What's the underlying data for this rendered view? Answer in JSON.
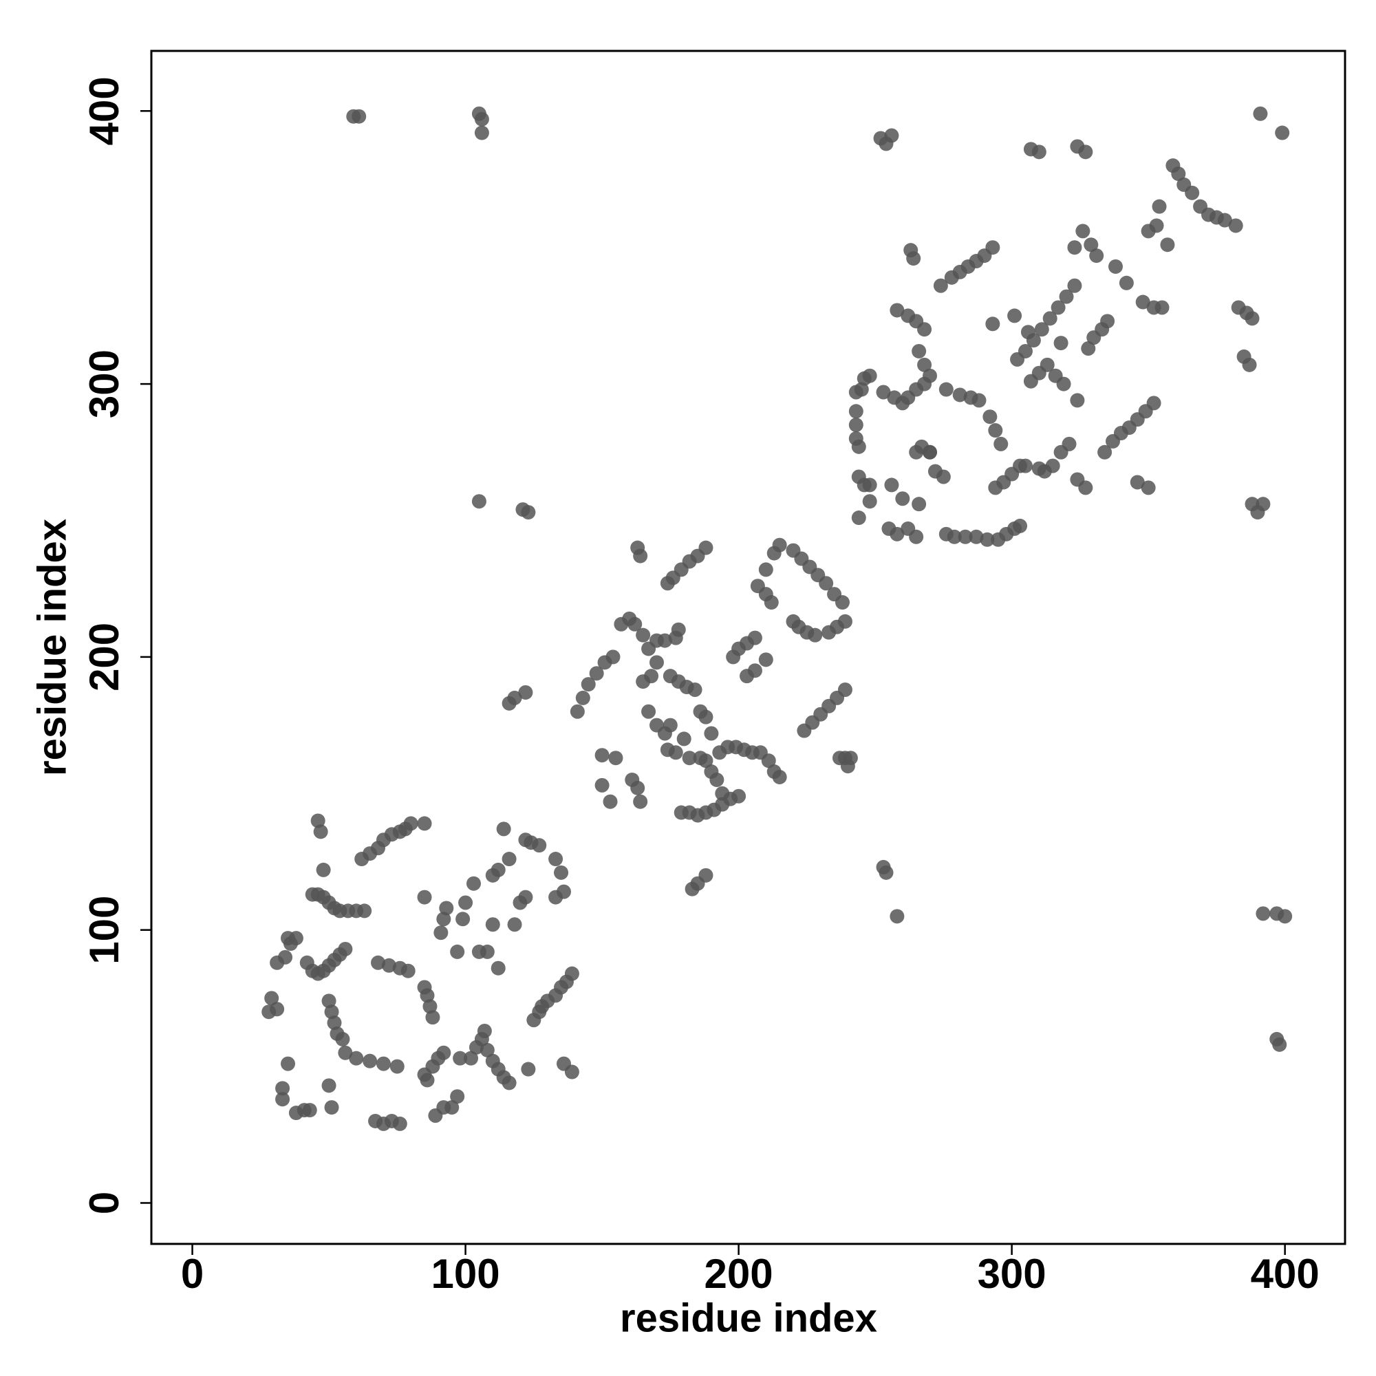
{
  "chart_data": {
    "type": "scatter",
    "xlabel": "residue index",
    "ylabel": "residue index",
    "xlim": [
      -15,
      422
    ],
    "ylim": [
      -15,
      422
    ],
    "xticks": [
      0,
      100,
      200,
      300,
      400
    ],
    "yticks": [
      0,
      100,
      200,
      300,
      400
    ],
    "color": "#555555",
    "x": [
      59,
      61,
      105,
      106,
      106,
      105,
      121,
      123,
      28,
      29,
      31,
      31,
      34,
      35,
      36,
      38,
      33,
      33,
      35,
      38,
      41,
      43,
      46,
      47,
      48,
      44,
      46,
      48,
      50,
      52,
      54,
      57,
      60,
      63,
      42,
      44,
      46,
      48,
      50,
      52,
      54,
      56,
      50,
      51,
      52,
      53,
      55,
      50,
      51,
      56,
      60,
      65,
      70,
      75,
      62,
      65,
      68,
      70,
      73,
      76,
      78,
      80,
      85,
      68,
      72,
      76,
      79,
      67,
      70,
      73,
      76,
      85,
      86,
      87,
      88,
      85,
      86,
      88,
      90,
      92,
      89,
      92,
      95,
      97,
      85,
      91,
      92,
      93,
      97,
      99,
      100,
      103,
      98,
      102,
      104,
      106,
      107,
      108,
      110,
      112,
      114,
      116,
      105,
      108,
      110,
      112,
      110,
      112,
      114,
      116,
      118,
      120,
      122,
      123,
      122,
      124,
      127,
      125,
      127,
      128,
      130,
      133,
      135,
      137,
      139,
      133,
      136,
      133,
      135,
      136,
      139,
      116,
      118,
      122,
      183,
      185,
      188,
      141,
      143,
      145,
      148,
      151,
      154,
      150,
      150,
      153,
      155,
      161,
      163,
      164,
      157,
      160,
      162,
      165,
      167,
      170,
      165,
      168,
      170,
      173,
      177,
      178,
      167,
      170,
      173,
      175,
      174,
      177,
      180,
      182,
      186,
      175,
      178,
      181,
      184,
      186,
      188,
      190,
      188,
      190,
      192,
      194,
      193,
      196,
      199,
      202,
      205,
      208,
      211,
      213,
      215,
      179,
      182,
      185,
      188,
      191,
      194,
      197,
      200,
      163,
      164,
      174,
      176,
      179,
      182,
      185,
      188,
      198,
      200,
      203,
      206,
      203,
      206,
      210,
      207,
      210,
      212,
      213,
      215,
      210,
      220,
      222,
      225,
      228,
      220,
      223,
      226,
      229,
      232,
      235,
      238,
      233,
      236,
      239,
      224,
      227,
      230,
      233,
      236,
      239,
      240,
      241,
      239,
      237,
      253,
      254,
      258,
      243,
      245,
      246,
      248,
      243,
      243,
      243,
      244,
      244,
      246,
      248,
      244,
      248,
      255,
      258,
      256,
      253,
      257,
      260,
      262,
      265,
      268,
      270,
      268,
      266,
      268,
      265,
      262,
      258,
      263,
      264,
      274,
      278,
      281,
      284,
      287,
      290,
      293,
      260,
      262,
      265,
      265,
      267,
      270,
      272,
      275,
      276,
      281,
      285,
      288,
      276,
      279,
      283,
      287,
      291,
      295,
      298,
      301,
      303,
      292,
      294,
      296,
      294,
      297,
      300,
      303,
      305,
      310,
      293,
      302,
      305,
      308,
      311,
      314,
      317,
      320,
      323,
      307,
      310,
      313,
      316,
      319,
      312,
      315,
      318,
      321,
      324,
      327,
      324,
      323,
      326,
      329,
      331,
      328,
      330,
      333,
      335,
      338,
      342,
      340,
      343,
      346,
      349,
      352,
      334,
      337,
      346,
      350,
      348,
      352,
      355,
      350,
      353,
      357,
      359,
      361,
      363,
      366,
      369,
      372,
      375,
      378,
      382,
      383,
      386,
      388,
      385,
      387,
      388,
      390,
      392,
      354,
      327,
      324,
      310,
      307,
      254,
      256,
      252,
      391,
      399,
      392,
      397,
      400,
      397,
      398,
      306,
      301,
      318,
      266,
      270
    ],
    "values": [
      398,
      398,
      399,
      397,
      392,
      257,
      254,
      253,
      70,
      75,
      71,
      88,
      90,
      97,
      95,
      97,
      42,
      38,
      51,
      33,
      34,
      34,
      140,
      136,
      122,
      113,
      113,
      112,
      110,
      108,
      107,
      107,
      107,
      107,
      88,
      85,
      84,
      85,
      87,
      89,
      91,
      93,
      74,
      70,
      66,
      62,
      60,
      43,
      35,
      55,
      53,
      52,
      51,
      50,
      126,
      128,
      130,
      133,
      135,
      136,
      137,
      139,
      139,
      88,
      87,
      86,
      85,
      30,
      29,
      30,
      29,
      79,
      76,
      72,
      68,
      47,
      45,
      50,
      53,
      55,
      32,
      35,
      35,
      39,
      112,
      99,
      104,
      108,
      92,
      104,
      110,
      117,
      53,
      53,
      57,
      60,
      63,
      56,
      52,
      49,
      46,
      44,
      92,
      92,
      102,
      86,
      120,
      122,
      137,
      126,
      102,
      110,
      112,
      49,
      133,
      132,
      131,
      67,
      70,
      72,
      74,
      76,
      79,
      81,
      84,
      112,
      114,
      126,
      121,
      51,
      48,
      183,
      185,
      187,
      115,
      117,
      120,
      180,
      185,
      190,
      194,
      198,
      200,
      164,
      153,
      147,
      163,
      155,
      152,
      147,
      212,
      214,
      212,
      208,
      203,
      198,
      191,
      193,
      206,
      206,
      207,
      210,
      180,
      175,
      172,
      175,
      166,
      165,
      170,
      163,
      163,
      193,
      191,
      189,
      188,
      180,
      178,
      172,
      162,
      158,
      155,
      150,
      165,
      167,
      167,
      166,
      165,
      165,
      162,
      158,
      156,
      143,
      143,
      142,
      143,
      144,
      146,
      148,
      149,
      240,
      237,
      227,
      229,
      232,
      235,
      237,
      240,
      200,
      203,
      205,
      207,
      193,
      195,
      199,
      226,
      223,
      220,
      238,
      241,
      232,
      213,
      211,
      209,
      208,
      239,
      236,
      233,
      230,
      227,
      223,
      220,
      209,
      211,
      213,
      173,
      176,
      179,
      182,
      185,
      188,
      160,
      163,
      163,
      163,
      123,
      121,
      105,
      297,
      298,
      302,
      303,
      290,
      285,
      280,
      277,
      266,
      263,
      257,
      251,
      263,
      247,
      245,
      263,
      297,
      295,
      293,
      295,
      298,
      300,
      303,
      307,
      312,
      320,
      323,
      325,
      327,
      349,
      346,
      336,
      339,
      341,
      343,
      345,
      347,
      350,
      258,
      247,
      244,
      275,
      277,
      275,
      268,
      266,
      298,
      296,
      295,
      294,
      245,
      244,
      244,
      244,
      243,
      243,
      245,
      247,
      248,
      288,
      283,
      278,
      262,
      264,
      267,
      270,
      270,
      269,
      322,
      309,
      312,
      316,
      320,
      324,
      328,
      332,
      336,
      301,
      304,
      307,
      303,
      300,
      268,
      270,
      275,
      278,
      265,
      262,
      294,
      350,
      356,
      351,
      347,
      313,
      317,
      320,
      323,
      343,
      337,
      282,
      284,
      287,
      290,
      293,
      275,
      279,
      264,
      262,
      330,
      328,
      328,
      356,
      358,
      351,
      380,
      377,
      373,
      370,
      365,
      362,
      361,
      360,
      358,
      328,
      326,
      324,
      310,
      307,
      256,
      253,
      256,
      365,
      385,
      387,
      385,
      386,
      388,
      391,
      390,
      399,
      392,
      106,
      106,
      105,
      60,
      58,
      319,
      325,
      315,
      256,
      275
    ]
  }
}
